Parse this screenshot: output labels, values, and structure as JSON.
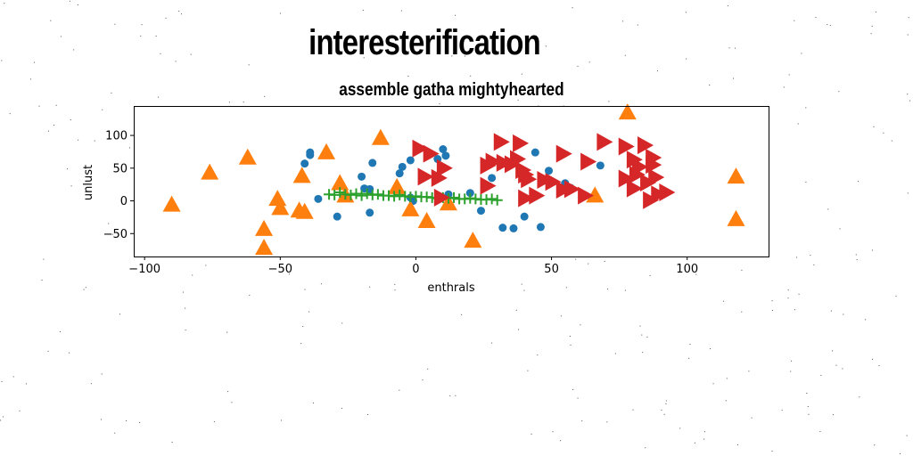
{
  "figure": {
    "title": "interesterification"
  },
  "chart_data": {
    "type": "scatter",
    "title": "assemble gatha mightyhearted",
    "xlabel": "enthrals",
    "ylabel": "unlust",
    "xlim": [
      -104,
      130
    ],
    "ylim": [
      -85,
      145
    ],
    "xticks": [
      -100,
      -50,
      0,
      50,
      100
    ],
    "yticks": [
      -50,
      0,
      50,
      100
    ],
    "grid": false,
    "colors": [
      "#1f77b4",
      "#ff7f0e",
      "#2ca02c",
      "#d62728"
    ],
    "series": [
      {
        "marker": "circle",
        "color": "#1f77b4",
        "points": [
          [
            -41,
            57
          ],
          [
            -39,
            70
          ],
          [
            -39,
            74
          ],
          [
            -36,
            3
          ],
          [
            -29,
            -24
          ],
          [
            -20,
            37
          ],
          [
            -19,
            19
          ],
          [
            -17,
            18
          ],
          [
            -17,
            -18
          ],
          [
            -16,
            58
          ],
          [
            -6,
            42
          ],
          [
            -5,
            52
          ],
          [
            -2,
            62
          ],
          [
            -2,
            5
          ],
          [
            -1,
            0
          ],
          [
            8,
            64
          ],
          [
            10,
            79
          ],
          [
            11,
            69
          ],
          [
            12,
            10
          ],
          [
            20,
            12
          ],
          [
            24,
            -15
          ],
          [
            28,
            35
          ],
          [
            32,
            -41
          ],
          [
            36,
            -42
          ],
          [
            40,
            -24
          ],
          [
            44,
            74
          ],
          [
            46,
            -40
          ],
          [
            49,
            46
          ],
          [
            55,
            27
          ],
          [
            57,
            20
          ],
          [
            68,
            54
          ]
        ]
      },
      {
        "marker": "triangle-up",
        "color": "#ff7f0e",
        "points": [
          [
            -90,
            -7
          ],
          [
            -76,
            42
          ],
          [
            -62,
            65
          ],
          [
            -56,
            -44
          ],
          [
            -56,
            -73
          ],
          [
            -51,
            2
          ],
          [
            -50,
            -12
          ],
          [
            -43,
            -16
          ],
          [
            -42,
            37
          ],
          [
            -41,
            -18
          ],
          [
            -33,
            73
          ],
          [
            -28,
            26
          ],
          [
            -26,
            7
          ],
          [
            -13,
            95
          ],
          [
            -7,
            20
          ],
          [
            -2,
            -14
          ],
          [
            4,
            -32
          ],
          [
            12,
            -5
          ],
          [
            21,
            -62
          ],
          [
            66,
            7
          ],
          [
            78,
            134
          ],
          [
            118,
            36
          ],
          [
            118,
            -29
          ]
        ]
      },
      {
        "marker": "plus",
        "color": "#2ca02c",
        "points": [
          [
            -32,
            10
          ],
          [
            -30,
            9
          ],
          [
            -28,
            13
          ],
          [
            -26,
            10
          ],
          [
            -24,
            9
          ],
          [
            -22,
            11
          ],
          [
            -20,
            8
          ],
          [
            -18,
            11
          ],
          [
            -16,
            9
          ],
          [
            -14,
            10
          ],
          [
            -12,
            8
          ],
          [
            -10,
            8
          ],
          [
            -8,
            7
          ],
          [
            -6,
            9
          ],
          [
            -4,
            7
          ],
          [
            -2,
            6
          ],
          [
            0,
            7
          ],
          [
            2,
            6
          ],
          [
            4,
            6
          ],
          [
            6,
            5
          ],
          [
            8,
            4
          ],
          [
            10,
            5
          ],
          [
            12,
            4
          ],
          [
            14,
            5
          ],
          [
            16,
            3
          ],
          [
            18,
            3
          ],
          [
            20,
            4
          ],
          [
            22,
            3
          ],
          [
            24,
            2
          ],
          [
            26,
            2
          ],
          [
            28,
            3
          ],
          [
            30,
            1
          ]
        ]
      },
      {
        "marker": "triangle-right",
        "color": "#d62728",
        "points": [
          [
            1,
            80
          ],
          [
            3,
            37
          ],
          [
            5,
            72
          ],
          [
            8,
            35
          ],
          [
            9,
            5
          ],
          [
            10,
            50
          ],
          [
            26,
            23
          ],
          [
            26,
            54
          ],
          [
            28,
            60
          ],
          [
            31,
            90
          ],
          [
            32,
            58
          ],
          [
            35,
            56
          ],
          [
            37,
            64
          ],
          [
            38,
            88
          ],
          [
            39,
            47
          ],
          [
            40,
            40
          ],
          [
            40,
            4
          ],
          [
            41,
            33
          ],
          [
            44,
            8
          ],
          [
            47,
            32
          ],
          [
            50,
            29
          ],
          [
            54,
            17
          ],
          [
            54,
            72
          ],
          [
            57,
            18
          ],
          [
            62,
            8
          ],
          [
            63,
            60
          ],
          [
            69,
            90
          ],
          [
            77,
            34
          ],
          [
            77,
            83
          ],
          [
            80,
            19
          ],
          [
            80,
            63
          ],
          [
            81,
            40
          ],
          [
            82,
            52
          ],
          [
            84,
            85
          ],
          [
            85,
            28
          ],
          [
            86,
            1
          ],
          [
            87,
            55
          ],
          [
            87,
            66
          ],
          [
            88,
            36
          ],
          [
            89,
            10
          ],
          [
            92,
            13
          ]
        ]
      }
    ]
  }
}
